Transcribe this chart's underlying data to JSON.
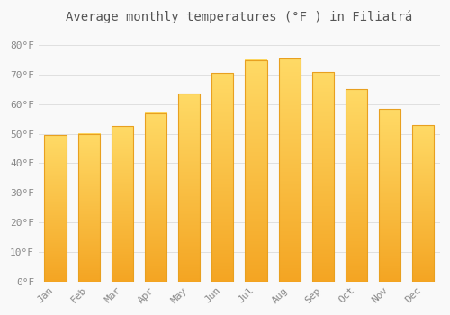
{
  "title": "Average monthly temperatures (°F ) in Filiatrá",
  "months": [
    "Jan",
    "Feb",
    "Mar",
    "Apr",
    "May",
    "Jun",
    "Jul",
    "Aug",
    "Sep",
    "Oct",
    "Nov",
    "Dec"
  ],
  "values": [
    49.5,
    50.0,
    52.5,
    57.0,
    63.5,
    70.5,
    75.0,
    75.5,
    71.0,
    65.0,
    58.5,
    53.0
  ],
  "bar_color_bottom": "#F5A623",
  "bar_color_top": "#FFD966",
  "bar_edge_color": "#E8A020",
  "background_color": "#f9f9f9",
  "grid_color": "#e0e0e0",
  "title_color": "#555555",
  "tick_color": "#888888",
  "ylim": [
    0,
    85
  ],
  "yticks": [
    0,
    10,
    20,
    30,
    40,
    50,
    60,
    70,
    80
  ],
  "ytick_labels": [
    "0°F",
    "10°F",
    "20°F",
    "30°F",
    "40°F",
    "50°F",
    "60°F",
    "70°F",
    "80°F"
  ],
  "title_fontsize": 10,
  "tick_fontsize": 8,
  "bar_width": 0.65
}
